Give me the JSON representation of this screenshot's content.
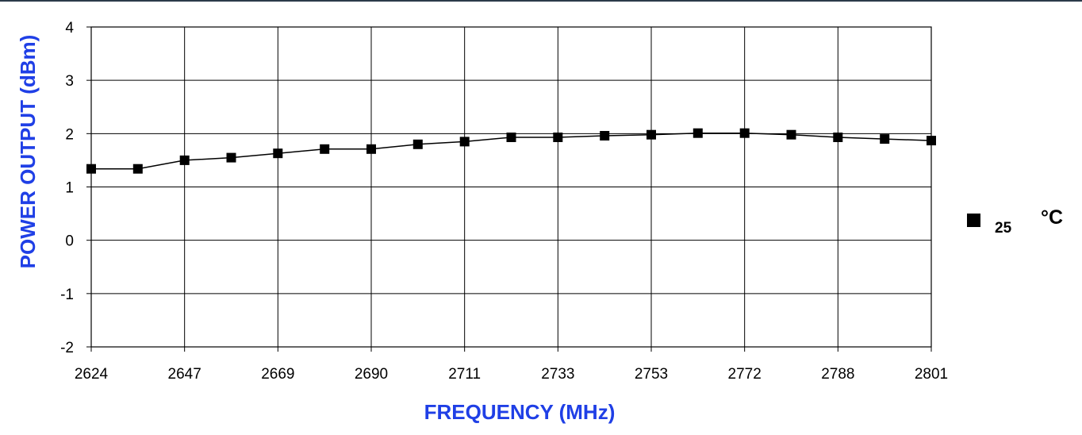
{
  "chart_data": {
    "type": "line",
    "title": "",
    "xlabel": "FREQUENCY (MHz)",
    "ylabel": "POWER OUTPUT (dBm)",
    "x_tick_labels": [
      "2624",
      "2647",
      "2669",
      "2690",
      "2711",
      "2733",
      "2753",
      "2772",
      "2788",
      "2801"
    ],
    "y_tick_labels": [
      "4",
      "3",
      "2",
      "1",
      "0",
      "-1",
      "-2"
    ],
    "ylim": [
      -2,
      4
    ],
    "grid": true,
    "legend_position": "right",
    "series": [
      {
        "name": "25 °C",
        "legend_value": "25",
        "legend_unit": "°C",
        "marker": "square",
        "color": "#000000",
        "x": [
          2624,
          2635.5,
          2647,
          2658,
          2669,
          2679.5,
          2690,
          2700.5,
          2711,
          2722,
          2733,
          2743,
          2753,
          2762.5,
          2772,
          2780,
          2788,
          2794.5,
          2801
        ],
        "values": [
          1.34,
          1.34,
          1.5,
          1.55,
          1.63,
          1.71,
          1.71,
          1.8,
          1.85,
          1.93,
          1.93,
          1.96,
          1.98,
          2.01,
          2.01,
          1.98,
          1.93,
          1.9,
          1.87
        ]
      }
    ]
  },
  "colors": {
    "axis_title": "#1f3fe6",
    "grid": "#000000",
    "line": "#000000",
    "top_rule": "#2b3a4a"
  }
}
